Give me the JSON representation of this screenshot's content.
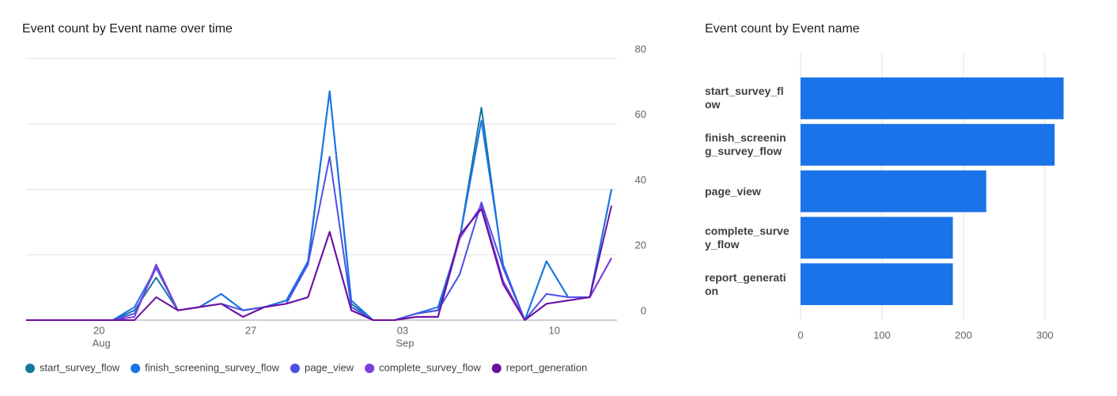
{
  "chart_data": [
    {
      "type": "line",
      "title": "Event count by Event name over time",
      "categories": [
        null,
        null,
        null,
        "20",
        null,
        null,
        null,
        null,
        null,
        null,
        "27",
        null,
        null,
        null,
        null,
        null,
        null,
        "03",
        null,
        null,
        null,
        null,
        null,
        null,
        "10",
        null,
        null,
        null
      ],
      "category_months": [
        null,
        null,
        null,
        "Aug",
        null,
        null,
        null,
        null,
        null,
        null,
        null,
        null,
        null,
        null,
        null,
        null,
        null,
        "Sep",
        null,
        null,
        null,
        null,
        null,
        null,
        null,
        null,
        null,
        null
      ],
      "ylim": [
        0,
        80
      ],
      "yticks": [
        0,
        20,
        40,
        60,
        80
      ],
      "grid": true,
      "series": [
        {
          "name": "start_survey_flow",
          "color": "#12799c",
          "values": [
            0,
            0,
            0,
            0,
            0,
            3,
            13,
            3,
            4,
            8,
            3,
            4,
            6,
            17,
            70,
            5,
            0,
            0,
            2,
            3,
            25,
            65,
            16,
            0,
            18,
            7,
            7,
            40
          ]
        },
        {
          "name": "finish_screening_survey_flow",
          "color": "#1a73e8",
          "values": [
            0,
            0,
            0,
            0,
            0,
            4,
            16,
            3,
            4,
            8,
            3,
            4,
            6,
            18,
            70,
            6,
            0,
            0,
            2,
            4,
            25,
            61,
            17,
            0,
            18,
            7,
            7,
            40
          ]
        },
        {
          "name": "page_view",
          "color": "#4c50e6",
          "values": [
            0,
            0,
            0,
            0,
            0,
            2,
            16,
            3,
            4,
            5,
            3,
            4,
            5,
            17,
            50,
            4,
            0,
            0,
            2,
            3,
            14,
            36,
            16,
            0,
            8,
            7,
            7,
            19
          ]
        },
        {
          "name": "complete_survey_flow",
          "color": "#7c3fdc",
          "values": [
            0,
            0,
            0,
            0,
            0,
            1,
            17,
            3,
            4,
            5,
            1,
            4,
            5,
            7,
            27,
            3,
            0,
            0,
            1,
            1,
            25,
            35,
            12,
            0,
            5,
            6,
            7,
            19
          ]
        },
        {
          "name": "report_generation",
          "color": "#6a0f9e",
          "values": [
            0,
            0,
            0,
            0,
            0,
            0,
            7,
            3,
            4,
            5,
            1,
            4,
            5,
            7,
            27,
            3,
            0,
            0,
            1,
            1,
            26,
            34,
            11,
            0,
            5,
            6,
            7,
            35
          ]
        }
      ]
    },
    {
      "type": "bar",
      "orientation": "horizontal",
      "title": "Event count by Event name",
      "categories": [
        "start_survey_flow",
        "finish_screening_survey_flow",
        "page_view",
        "complete_survey_flow",
        "report_generation"
      ],
      "values": [
        323,
        312,
        228,
        187,
        187
      ],
      "color": "#1a73e8",
      "xlim": [
        0,
        340
      ],
      "xticks": [
        0,
        100,
        200,
        300
      ],
      "grid": true
    }
  ]
}
